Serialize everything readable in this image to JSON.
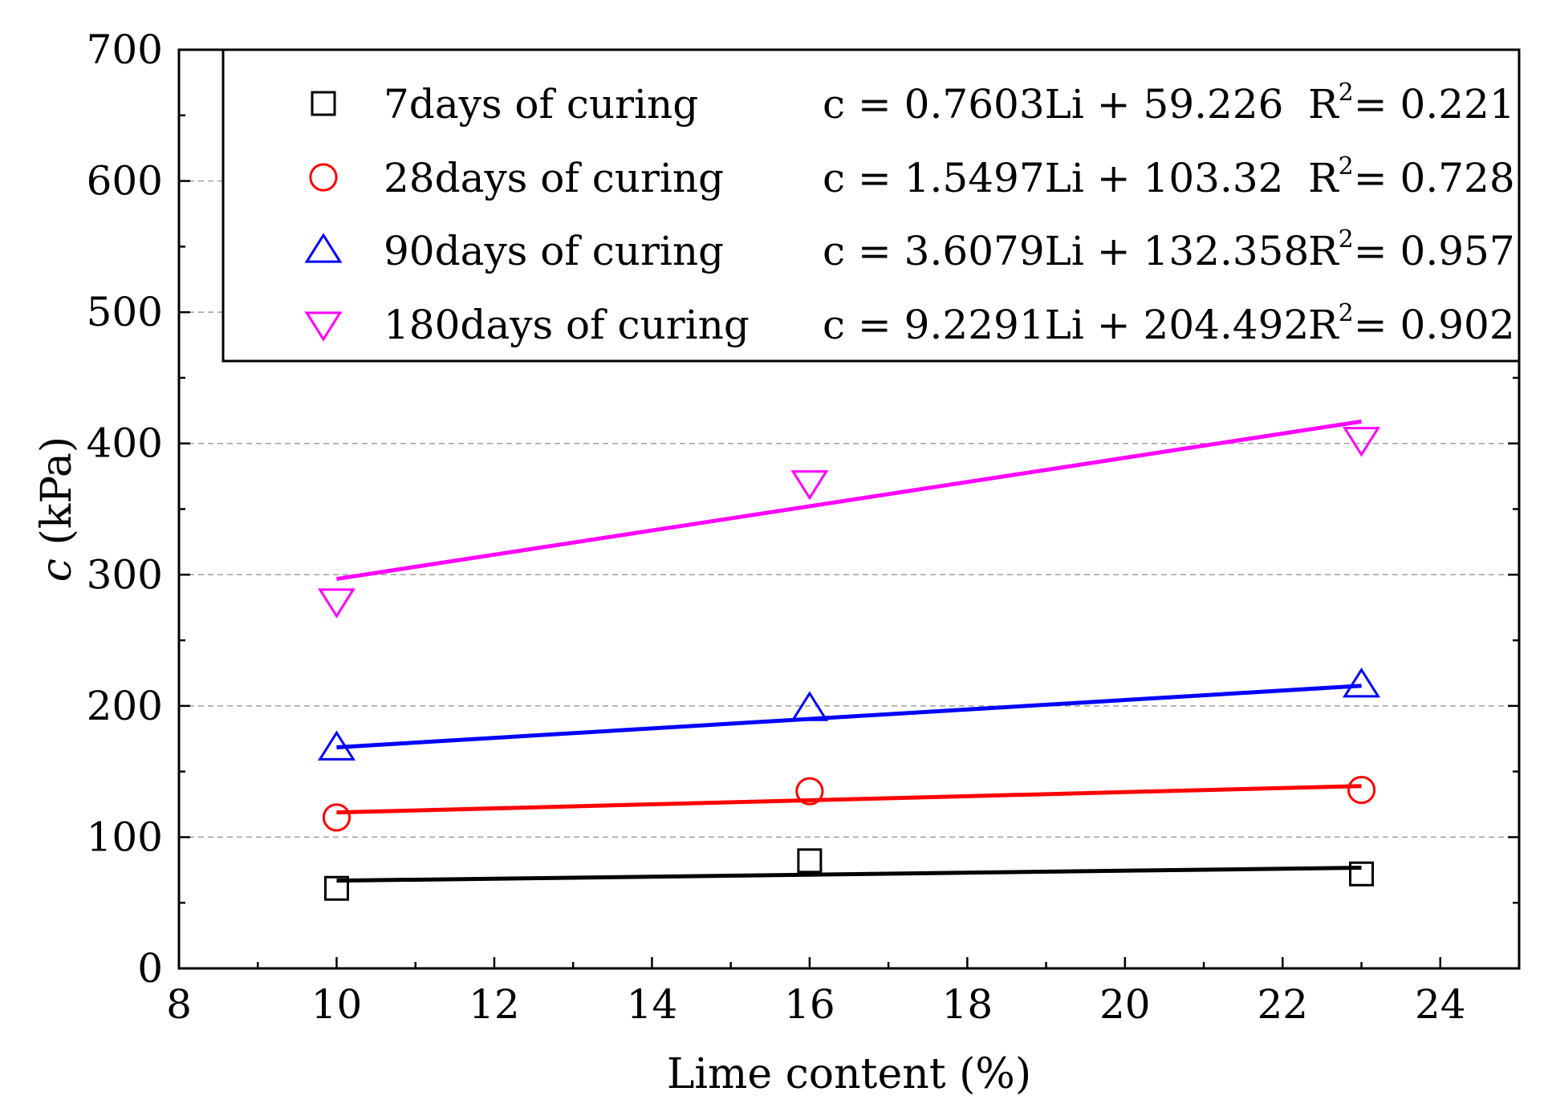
{
  "chart_data": {
    "type": "scatter",
    "title": "",
    "xlabel": "Lime  content (%)",
    "ylabel_symbol": "c",
    "ylabel_unit": " (kPa)",
    "xlim": [
      8,
      25
    ],
    "ylim": [
      0,
      700
    ],
    "xticks": [
      8,
      10,
      12,
      14,
      16,
      18,
      20,
      22,
      24
    ],
    "yticks": [
      0,
      100,
      200,
      300,
      400,
      500,
      600,
      700
    ],
    "grid": "horizontal dashed",
    "legend_position": "top-right",
    "series": [
      {
        "name": "7days of  curing",
        "marker": "square",
        "color": "#000000",
        "x": [
          10,
          16,
          23
        ],
        "y": [
          61,
          82,
          72
        ],
        "fit": {
          "slope": 0.7603,
          "intercept": 59.226,
          "label": "c = 0.7603Li + 59.226",
          "r2_label": "R",
          "r2_sup": "2",
          "r2_value": "= 0.221"
        }
      },
      {
        "name": "28days of  curing",
        "marker": "circle",
        "color": "#ff0000",
        "x": [
          10,
          16,
          23
        ],
        "y": [
          115,
          135,
          136
        ],
        "fit": {
          "slope": 1.5497,
          "intercept": 103.32,
          "label": "c = 1.5497Li + 103.32",
          "r2_label": "R",
          "r2_sup": "2",
          "r2_value": "= 0.728"
        }
      },
      {
        "name": "90days of  curing",
        "marker": "triangle-up",
        "color": "#0000ff",
        "x": [
          10,
          16,
          23
        ],
        "y": [
          168,
          198,
          216
        ],
        "fit": {
          "slope": 3.6079,
          "intercept": 132.358,
          "label": "c = 3.6079Li + 132.358",
          "r2_label": "R",
          "r2_sup": "2",
          "r2_value": "= 0.957"
        }
      },
      {
        "name": "180days of  curing",
        "marker": "triangle-down",
        "color": "#ff00ff",
        "x": [
          10,
          16,
          23
        ],
        "y": [
          280,
          370,
          403
        ],
        "fit": {
          "slope": 9.2291,
          "intercept": 204.492,
          "label": "c = 9.2291Li + 204.492",
          "r2_label": "R",
          "r2_sup": "2",
          "r2_value": "= 0.902"
        }
      }
    ]
  }
}
